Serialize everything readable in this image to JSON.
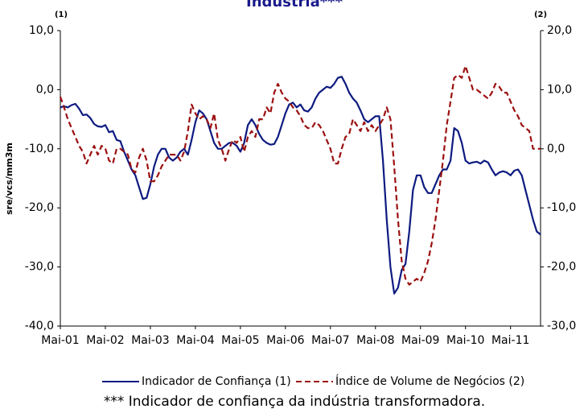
{
  "chart_data": {
    "type": "line",
    "title": "Indústria***",
    "y_label": "sre/vcs/mm3m",
    "y_axis_note": "(1)",
    "y2_axis_note": "(2)",
    "footnote": "*** Indicador de confiança da indústria transformadora.",
    "categories": [
      "Mai-01",
      null,
      null,
      null,
      null,
      null,
      null,
      null,
      null,
      null,
      null,
      null,
      "Mai-02",
      null,
      null,
      null,
      null,
      null,
      null,
      null,
      null,
      null,
      null,
      null,
      "Mai-03",
      null,
      null,
      null,
      null,
      null,
      null,
      null,
      null,
      null,
      null,
      null,
      "Mai-04",
      null,
      null,
      null,
      null,
      null,
      null,
      null,
      null,
      null,
      null,
      null,
      "Mai-05",
      null,
      null,
      null,
      null,
      null,
      null,
      null,
      null,
      null,
      null,
      null,
      "Mai-06",
      null,
      null,
      null,
      null,
      null,
      null,
      null,
      null,
      null,
      null,
      null,
      "Mai-07",
      null,
      null,
      null,
      null,
      null,
      null,
      null,
      null,
      null,
      null,
      null,
      "Mai-08",
      null,
      null,
      null,
      null,
      null,
      null,
      null,
      null,
      null,
      null,
      null,
      "Mai-09",
      null,
      null,
      null,
      null,
      null,
      null,
      null,
      null,
      null,
      null,
      null,
      "Mai-10",
      null,
      null,
      null,
      null,
      null,
      null,
      null,
      null,
      null,
      null,
      null,
      "Mai-11",
      null,
      null,
      null,
      null,
      null,
      null,
      null,
      null
    ],
    "series": [
      {
        "name": "Indicador de Confiança (1)",
        "color": "#0d1a80",
        "line_style": "solid",
        "values": [
          -3,
          -2.8,
          -3,
          -2.6,
          -2.4,
          -3.2,
          -4.3,
          -4.2,
          -4.8,
          -5.8,
          -6.2,
          -6.3,
          -6,
          -7.2,
          -7,
          -8.5,
          -8.7,
          -10.5,
          -12,
          -13.5,
          -14.5,
          -16.5,
          -18.5,
          -18.3,
          -16,
          -13,
          -11,
          -10,
          -10,
          -11.5,
          -12,
          -11.5,
          -10.5,
          -10,
          -11,
          -8.5,
          -5.5,
          -3.5,
          -4,
          -5,
          -7,
          -9,
          -10,
          -10,
          -9.5,
          -9,
          -9,
          -9.5,
          -10.5,
          -9,
          -6,
          -5,
          -6,
          -7.5,
          -8.5,
          -9,
          -9.3,
          -9.2,
          -8,
          -6,
          -4,
          -2.5,
          -2.2,
          -3,
          -2.5,
          -3.5,
          -3.7,
          -3,
          -1.5,
          -0.5,
          0,
          0.5,
          0.3,
          1,
          2,
          2.2,
          1,
          -0.5,
          -1.5,
          -2.2,
          -3.5,
          -5,
          -5.5,
          -5,
          -4.5,
          -4.5,
          -12,
          -22,
          -30,
          -34.5,
          -33.5,
          -30.5,
          -29.5,
          -24,
          -17,
          -14.5,
          -14.5,
          -16.5,
          -17.5,
          -17.5,
          -16,
          -14.5,
          -13.5,
          -13.5,
          -12,
          -6.5,
          -7,
          -9,
          -12,
          -12.5,
          -12.3,
          -12.2,
          -12.5,
          -12,
          -12.3,
          -13.5,
          -14.5,
          -14,
          -13.8,
          -14,
          -14.5,
          -13.7,
          -13.5,
          -14.5,
          -17,
          -19.5,
          -22,
          -24,
          -24.5
        ]
      },
      {
        "name": "Índice de Volume de Negócios (2)",
        "color": "#9b1010",
        "line_style": "dashed",
        "axis": "y2",
        "values": [
          8.8,
          7,
          5,
          3.5,
          2,
          0.5,
          -0.5,
          -2.5,
          -1,
          0.5,
          -1,
          0.5,
          0,
          -2,
          -2.5,
          0,
          0,
          -0.5,
          -1,
          -3.5,
          -4,
          -1.5,
          0,
          -2,
          -5.5,
          -5.5,
          -4.5,
          -3,
          -2,
          -1,
          -1,
          -1,
          -2,
          -0.5,
          3,
          7.5,
          6,
          5,
          5.5,
          5,
          3.5,
          6,
          1.5,
          0,
          -2,
          0,
          1.5,
          1,
          2,
          -0.5,
          2,
          3,
          2,
          5,
          5,
          7,
          6,
          9.5,
          11,
          9.5,
          8.5,
          8,
          7,
          6.5,
          5.5,
          4,
          3.5,
          3.5,
          4.5,
          4,
          3,
          1.5,
          0,
          -2.5,
          -2.5,
          0,
          2,
          2.5,
          5,
          4,
          3,
          4.5,
          3,
          4,
          3,
          4,
          5,
          7,
          5,
          -3,
          -12,
          -19,
          -22,
          -23,
          -22.5,
          -22,
          -22.5,
          -21,
          -19,
          -16,
          -12,
          -7,
          -2,
          4,
          8,
          12,
          12.5,
          12,
          14,
          12,
          10,
          10,
          9.5,
          9,
          8.5,
          9.5,
          11,
          10.5,
          9.5,
          9.5,
          8,
          6.5,
          5.5,
          4,
          3.5,
          3,
          0,
          0,
          0
        ]
      }
    ],
    "ylim": [
      -40,
      10
    ],
    "yticks": [
      {
        "value": -40,
        "label": "-40,0"
      },
      {
        "value": -30,
        "label": "-30,0"
      },
      {
        "value": -20,
        "label": "-20,0"
      },
      {
        "value": -10,
        "label": "-10,0"
      },
      {
        "value": 0,
        "label": "0,0"
      },
      {
        "value": 10,
        "label": "10,0"
      }
    ],
    "y2lim": [
      -30,
      20
    ],
    "y2ticks": [
      {
        "value": -30,
        "label": "-30,0"
      },
      {
        "value": -20,
        "label": "-20,0"
      },
      {
        "value": -10,
        "label": "-10,0"
      },
      {
        "value": 0,
        "label": "0,0"
      },
      {
        "value": 10,
        "label": "10,0"
      },
      {
        "value": 20,
        "label": "20,0"
      }
    ],
    "grid": false
  }
}
